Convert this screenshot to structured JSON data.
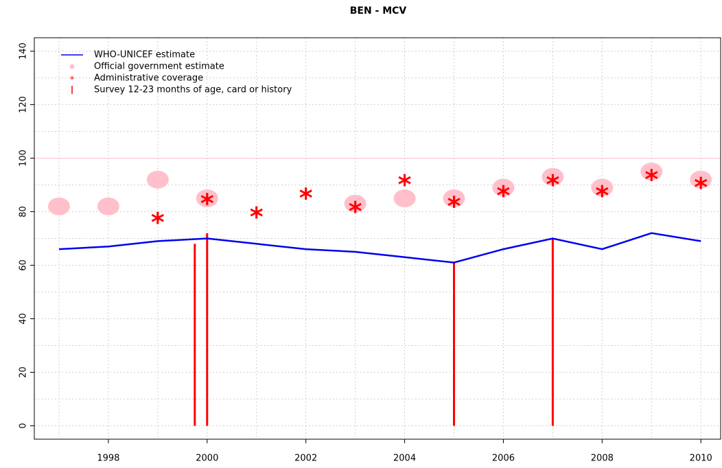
{
  "chart_data": {
    "type": "line",
    "title": "BEN  -  MCV",
    "x": [
      1997,
      1998,
      1999,
      2000,
      2001,
      2002,
      2003,
      2004,
      2005,
      2006,
      2007,
      2008,
      2009,
      2010
    ],
    "series": [
      {
        "name": "WHO-UNICEF estimate",
        "color": "#0000ee",
        "style": "line",
        "values": [
          66,
          67,
          69,
          70,
          68,
          66,
          65,
          63,
          61,
          66,
          70,
          66,
          72,
          69
        ]
      },
      {
        "name": "Official government estimate",
        "color": "#ffc0cb",
        "style": "dot",
        "values": [
          82,
          82,
          92,
          85,
          null,
          null,
          83,
          85,
          85,
          89,
          93,
          89,
          95,
          92
        ]
      },
      {
        "name": "Administrative coverage",
        "color": "#ff0000",
        "style": "star",
        "values": [
          null,
          null,
          78,
          85,
          80,
          87,
          82,
          92,
          84,
          88,
          92,
          88,
          94,
          91
        ]
      }
    ],
    "surveys": {
      "name": "Survey 12-23 months of age, card or history",
      "color": "#ff0000",
      "x": [
        1999.75,
        2000,
        2005,
        2007
      ],
      "values": [
        68,
        72,
        61,
        70
      ]
    },
    "reference_line": {
      "value": 100,
      "color": "#ffc0cb"
    },
    "xlim": [
      1996.5,
      2010.4
    ],
    "ylim": [
      -5,
      145
    ],
    "xticks": [
      1998,
      2000,
      2002,
      2004,
      2006,
      2008,
      2010
    ],
    "yticks": [
      0,
      20,
      40,
      60,
      80,
      100,
      120,
      140
    ],
    "xgrid": [
      1997,
      1998,
      1999,
      2000,
      2001,
      2002,
      2003,
      2004,
      2005,
      2006,
      2007,
      2008,
      2009,
      2010
    ],
    "ygrid": [
      0,
      10,
      20,
      30,
      40,
      50,
      60,
      70,
      80,
      90,
      100,
      110,
      120,
      130,
      140
    ],
    "grid": true,
    "legend": "top-left"
  }
}
